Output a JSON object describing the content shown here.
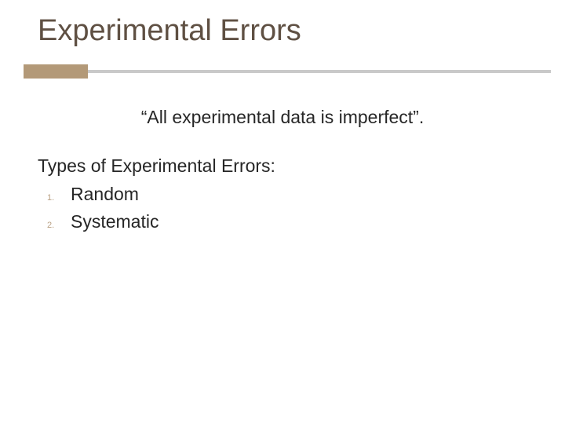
{
  "title": {
    "text": "Experimental Errors",
    "color": "#5f5043",
    "fontsize": 38
  },
  "rule": {
    "accent_color": "#b39978",
    "line_color": "#c9c9c9",
    "accent_width": 82,
    "accent_height": 18,
    "line_height": 4
  },
  "quote": {
    "text": "“All experimental data is imperfect”.",
    "color": "#262626",
    "fontsize": 23
  },
  "subhead": {
    "text": "Types of Experimental Errors:",
    "color": "#262626",
    "fontsize": 23
  },
  "list": {
    "number_color": "#b9a083",
    "items": [
      {
        "n": "1.",
        "label": "Random"
      },
      {
        "n": "2.",
        "label": "Systematic"
      }
    ]
  },
  "background_color": "#ffffff"
}
